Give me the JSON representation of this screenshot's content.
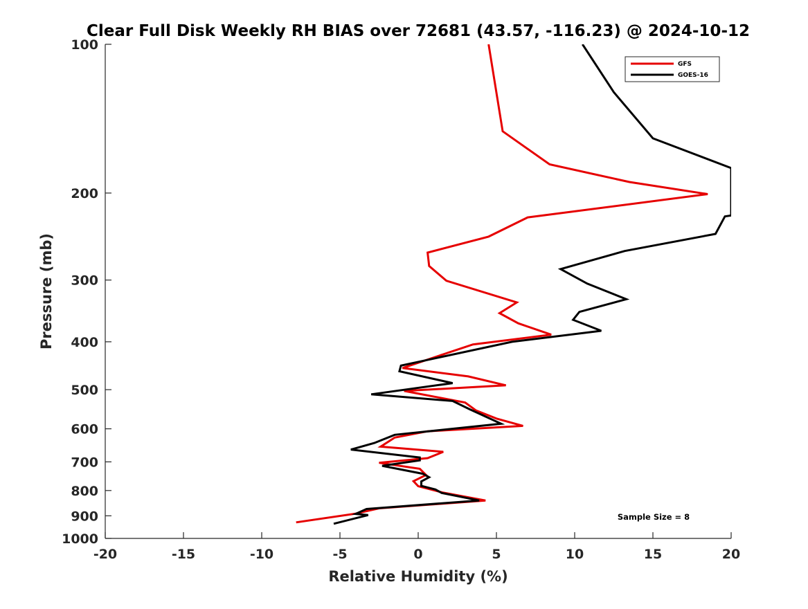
{
  "chart_data": {
    "type": "line",
    "title": "Clear Full Disk Weekly RH BIAS over 72681 (43.57, -116.23) @ 2024-10-12",
    "xlabel": "Relative Humidity (%)",
    "ylabel": "Pressure (mb)",
    "xlim": [
      -20,
      20
    ],
    "ylim": [
      100,
      1000
    ],
    "y_scale": "log",
    "y_reversed": true,
    "x_ticks": [
      -20,
      -15,
      -10,
      -5,
      0,
      5,
      10,
      15,
      20
    ],
    "x_tick_labels": [
      "-20",
      "-15",
      "-10",
      "-5",
      "0",
      "5",
      "10",
      "15",
      "20"
    ],
    "y_ticks": [
      100,
      200,
      300,
      400,
      500,
      600,
      700,
      800,
      900,
      1000
    ],
    "y_tick_labels": [
      "100",
      "200",
      "300",
      "400",
      "500",
      "600",
      "700",
      "800",
      "900",
      "1000"
    ],
    "grid": false,
    "legend_position": "top-right",
    "annotation": "Sample Size = 8",
    "series": [
      {
        "name": "GFS",
        "color": "#e60000",
        "points": [
          [
            4.5,
            100
          ],
          [
            5.4,
            150
          ],
          [
            8.4,
            175
          ],
          [
            13.5,
            190
          ],
          [
            18.5,
            201
          ],
          [
            7.0,
            224
          ],
          [
            4.5,
            245
          ],
          [
            0.6,
            264
          ],
          [
            0.7,
            281
          ],
          [
            1.8,
            301
          ],
          [
            6.3,
            333
          ],
          [
            5.2,
            350
          ],
          [
            6.4,
            367
          ],
          [
            8.5,
            387
          ],
          [
            3.5,
            405
          ],
          [
            1.8,
            422
          ],
          [
            -1.0,
            452
          ],
          [
            3.2,
            470
          ],
          [
            5.6,
            490
          ],
          [
            -0.9,
            503
          ],
          [
            3.0,
            531
          ],
          [
            3.7,
            551
          ],
          [
            5.0,
            572
          ],
          [
            6.7,
            592
          ],
          [
            0.6,
            607
          ],
          [
            -1.5,
            625
          ],
          [
            -2.4,
            652
          ],
          [
            1.6,
            668
          ],
          [
            0.6,
            688
          ],
          [
            -2.5,
            703
          ],
          [
            0.1,
            723
          ],
          [
            0.5,
            744
          ],
          [
            -0.3,
            766
          ],
          [
            0.0,
            784
          ],
          [
            1.6,
            808
          ],
          [
            4.3,
            838
          ],
          [
            -2.5,
            869
          ],
          [
            -4.0,
            891
          ],
          [
            -7.8,
            928
          ]
        ]
      },
      {
        "name": "GOES-16",
        "color": "#000000",
        "points": [
          [
            10.5,
            100
          ],
          [
            12.5,
            125
          ],
          [
            15.0,
            155
          ],
          [
            20.0,
            178
          ],
          [
            20.0,
            222
          ],
          [
            19.6,
            223
          ],
          [
            19.0,
            242
          ],
          [
            13.2,
            262
          ],
          [
            9.1,
            285
          ],
          [
            10.8,
            305
          ],
          [
            13.3,
            328
          ],
          [
            10.3,
            348
          ],
          [
            9.9,
            361
          ],
          [
            11.7,
            380
          ],
          [
            6.0,
            400
          ],
          [
            -1.1,
            447
          ],
          [
            -1.2,
            459
          ],
          [
            2.2,
            485
          ],
          [
            -3.0,
            511
          ],
          [
            2.2,
            527
          ],
          [
            3.3,
            548
          ],
          [
            5.3,
            586
          ],
          [
            -1.5,
            617
          ],
          [
            -2.8,
            641
          ],
          [
            -4.3,
            661
          ],
          [
            0.1,
            686
          ],
          [
            0.1,
            695
          ],
          [
            -2.3,
            713
          ],
          [
            0.3,
            740
          ],
          [
            0.7,
            752
          ],
          [
            0.2,
            767
          ],
          [
            0.2,
            783
          ],
          [
            1.1,
            796
          ],
          [
            1.5,
            809
          ],
          [
            3.9,
            838
          ],
          [
            -3.3,
            872
          ],
          [
            -4.0,
            892
          ],
          [
            -3.2,
            897
          ],
          [
            -5.4,
            934
          ]
        ]
      }
    ]
  }
}
